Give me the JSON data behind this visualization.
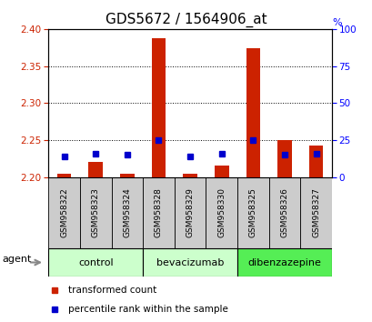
{
  "title": "GDS5672 / 1564906_at",
  "samples": [
    "GSM958322",
    "GSM958323",
    "GSM958324",
    "GSM958328",
    "GSM958329",
    "GSM958330",
    "GSM958325",
    "GSM958326",
    "GSM958327"
  ],
  "red_values": [
    2.205,
    2.22,
    2.205,
    2.388,
    2.204,
    2.215,
    2.374,
    2.25,
    2.243
  ],
  "blue_values_pct": [
    14,
    16,
    15,
    25,
    14,
    16,
    25,
    15,
    16
  ],
  "ylim_left": [
    2.2,
    2.4
  ],
  "ylim_right": [
    0,
    100
  ],
  "yticks_left": [
    2.2,
    2.25,
    2.3,
    2.35,
    2.4
  ],
  "yticks_right": [
    0,
    25,
    50,
    75,
    100
  ],
  "groups": [
    {
      "label": "control",
      "indices": [
        0,
        1,
        2
      ],
      "color": "#ccffcc"
    },
    {
      "label": "bevacizumab",
      "indices": [
        3,
        4,
        5
      ],
      "color": "#ccffcc"
    },
    {
      "label": "dibenzazepine",
      "indices": [
        6,
        7,
        8
      ],
      "color": "#55ee55"
    }
  ],
  "red_color": "#cc2200",
  "blue_color": "#0000cc",
  "bar_base": 2.2,
  "bar_width": 0.45,
  "legend_labels": [
    "transformed count",
    "percentile rank within the sample"
  ],
  "agent_label": "agent",
  "bg_color": "#ffffff",
  "tick_gray_bg": "#cccccc",
  "title_fontsize": 11
}
